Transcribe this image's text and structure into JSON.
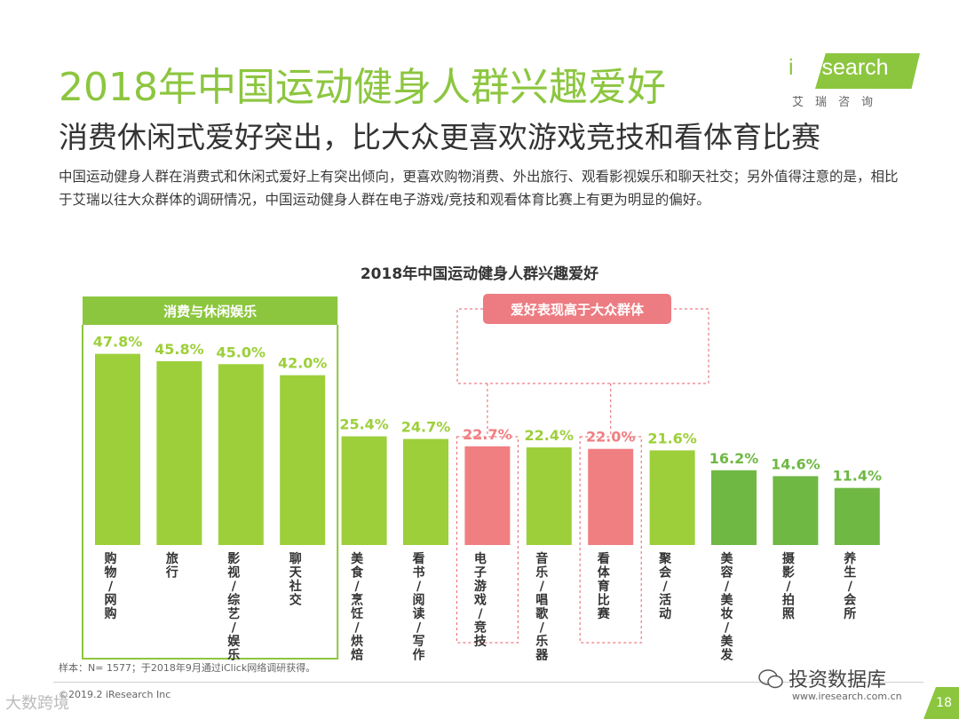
{
  "header": {
    "title": "2018年中国运动健身人群兴趣爱好",
    "subtitle": "消费休闲式爱好突出，比大众更喜欢游戏竞技和看体育比赛",
    "body": "中国运动健身人群在消费式和休闲式爱好上有突出倾向，更喜欢购物消费、外出旅行、观看影视娱乐和聊天社交；另外值得注意的是，相比于艾瑞以往大众群体的调研情况，中国运动健身人群在电子游戏/竞技和观看体育比赛上有更为明显的偏好。"
  },
  "logo": {
    "word_first": "i",
    "word_rest": "Research",
    "cn": "艾瑞咨询"
  },
  "chart_data": {
    "type": "bar",
    "title": "2018年中国运动健身人群兴趣爱好",
    "categories": [
      "购物/网购",
      "旅行",
      "影视/综艺/娱乐",
      "聊天社交",
      "美食/烹饪/烘焙",
      "看书/阅读/写作",
      "电子游戏/竞技",
      "音乐/唱歌/乐器",
      "看体育比赛",
      "聚会/活动",
      "美容/美妆/美发",
      "摄影/拍照",
      "养生/会所"
    ],
    "values": [
      47.8,
      45.8,
      45.0,
      42.0,
      25.4,
      24.7,
      22.7,
      22.4,
      22.0,
      21.6,
      16.2,
      14.6,
      11.4
    ],
    "value_labels": [
      "47.8%",
      "45.8%",
      "45.0%",
      "42.0%",
      "25.4%",
      "24.7%",
      "22.7%",
      "22.4%",
      "22.0%",
      "21.6%",
      "16.2%",
      "14.6%",
      "11.4%"
    ],
    "groups": {
      "leisure_label": "消费与休闲娱乐",
      "highlight_label": "爱好表现高于大众群体"
    },
    "colors": {
      "lightgreen": "#9dcf3a",
      "darkgreen": "#6fb844",
      "pink": "#f07f82",
      "leisure_box": "#8cc63f",
      "highlight_box": "#ec7c82"
    },
    "bar_colors": [
      "lightgreen",
      "lightgreen",
      "lightgreen",
      "lightgreen",
      "lightgreen",
      "lightgreen",
      "pink",
      "lightgreen",
      "pink",
      "lightgreen",
      "darkgreen",
      "darkgreen",
      "darkgreen"
    ],
    "ylim": [
      0,
      50
    ]
  },
  "footer": {
    "note": "样本：N= 1577；于2018年9月通过iClick网络调研获得。",
    "copyright": "©2019.2 iResearch Inc",
    "website": "www.iresearch.com.cn",
    "page": "18",
    "watermark": "投资数据库",
    "corner_watermark": "大数跨境"
  }
}
